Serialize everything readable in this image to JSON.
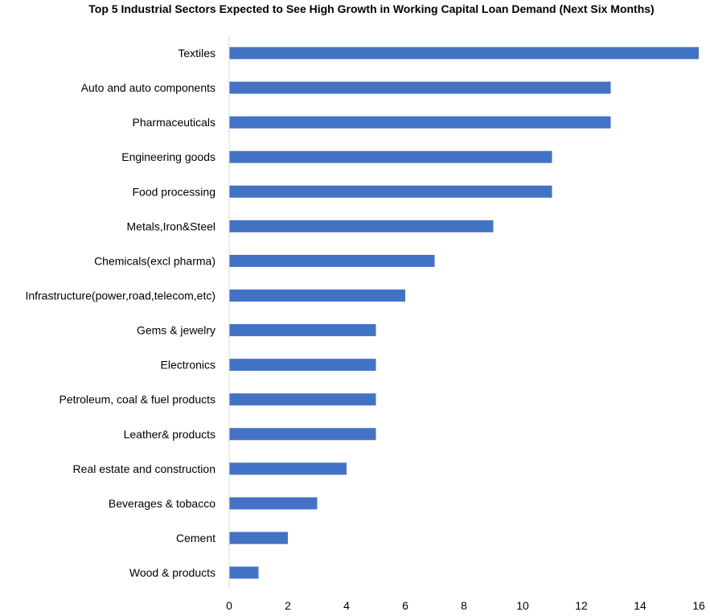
{
  "chart_data": {
    "type": "bar",
    "orientation": "horizontal",
    "title": "Top 5 Industrial Sectors Expected to See High Growth in Working Capital Loan Demand (Next Six Months)",
    "categories": [
      "Textiles",
      "Auto and auto components",
      "Pharmaceuticals",
      "Engineering goods",
      "Food processing",
      "Metals,Iron&Steel",
      "Chemicals(excl pharma)",
      "Infrastructure(power,road,telecom,etc)",
      "Gems & jewelry",
      "Electronics",
      "Petroleum, coal & fuel products",
      "Leather& products",
      "Real estate and construction",
      "Beverages & tobacco",
      "Cement",
      "Wood & products"
    ],
    "values": [
      16,
      13,
      13,
      11,
      11,
      9,
      7,
      6,
      5,
      5,
      5,
      5,
      4,
      3,
      2,
      1
    ],
    "xlim": [
      0,
      16
    ],
    "xticks": [
      "0",
      "2",
      "4",
      "6",
      "8",
      "10",
      "12",
      "14",
      "16"
    ],
    "xlabel": "",
    "ylabel": "",
    "grid": false,
    "legend": "none",
    "bar_color": "#4472C4"
  }
}
